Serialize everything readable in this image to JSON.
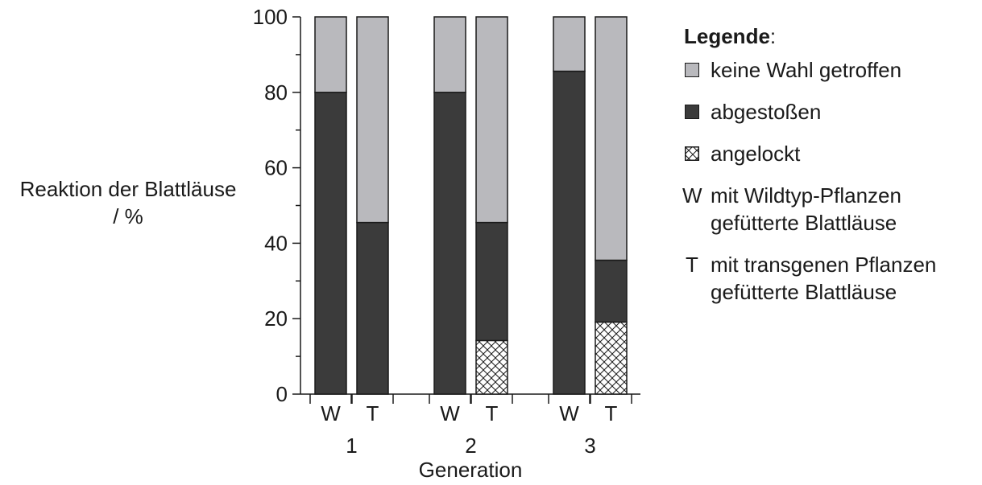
{
  "chart_data": {
    "type": "bar",
    "stacked": true,
    "title": "",
    "xlabel": "Generation",
    "ylabel": [
      "Reaktion der Blattläuse",
      "/ %"
    ],
    "ylim": [
      0,
      100
    ],
    "yticks": [
      "0",
      "20",
      "40",
      "60",
      "80",
      "100"
    ],
    "groups": [
      {
        "label": "1",
        "bars": [
          {
            "label": "W",
            "angelockt": 0,
            "abgestossen": 80,
            "keine_wahl": 20
          },
          {
            "label": "T",
            "angelockt": 0,
            "abgestossen": 45.5,
            "keine_wahl": 54.5
          }
        ]
      },
      {
        "label": "2",
        "bars": [
          {
            "label": "W",
            "angelockt": 0,
            "abgestossen": 80,
            "keine_wahl": 20
          },
          {
            "label": "T",
            "angelockt": 14.2,
            "abgestossen": 31.3,
            "keine_wahl": 54.5
          }
        ]
      },
      {
        "label": "3",
        "bars": [
          {
            "label": "W",
            "angelockt": 0,
            "abgestossen": 85.6,
            "keine_wahl": 14.4
          },
          {
            "label": "T",
            "angelockt": 19.1,
            "abgestossen": 16.4,
            "keine_wahl": 64.5
          }
        ]
      }
    ],
    "colors": {
      "keine_wahl": "#b9b9bd",
      "abgestossen": "#3b3b3b",
      "angelockt": "crosshatch"
    },
    "grid": false,
    "legend_position": "right"
  },
  "legend": {
    "title_bold": "Legende",
    "title_suffix": ":",
    "items": [
      {
        "key": "keine_wahl",
        "label": "keine Wahl getroffen"
      },
      {
        "key": "abgestossen",
        "label": "abgestoßen"
      },
      {
        "key": "angelockt",
        "label": "angelockt"
      }
    ],
    "abbreviations": [
      {
        "letter": "W",
        "line1": "mit Wildtyp-Pflanzen",
        "line2": "gefütterte Blattläuse"
      },
      {
        "letter": "T",
        "line1": "mit transgenen Pflanzen",
        "line2": "gefütterte Blattläuse"
      }
    ]
  }
}
